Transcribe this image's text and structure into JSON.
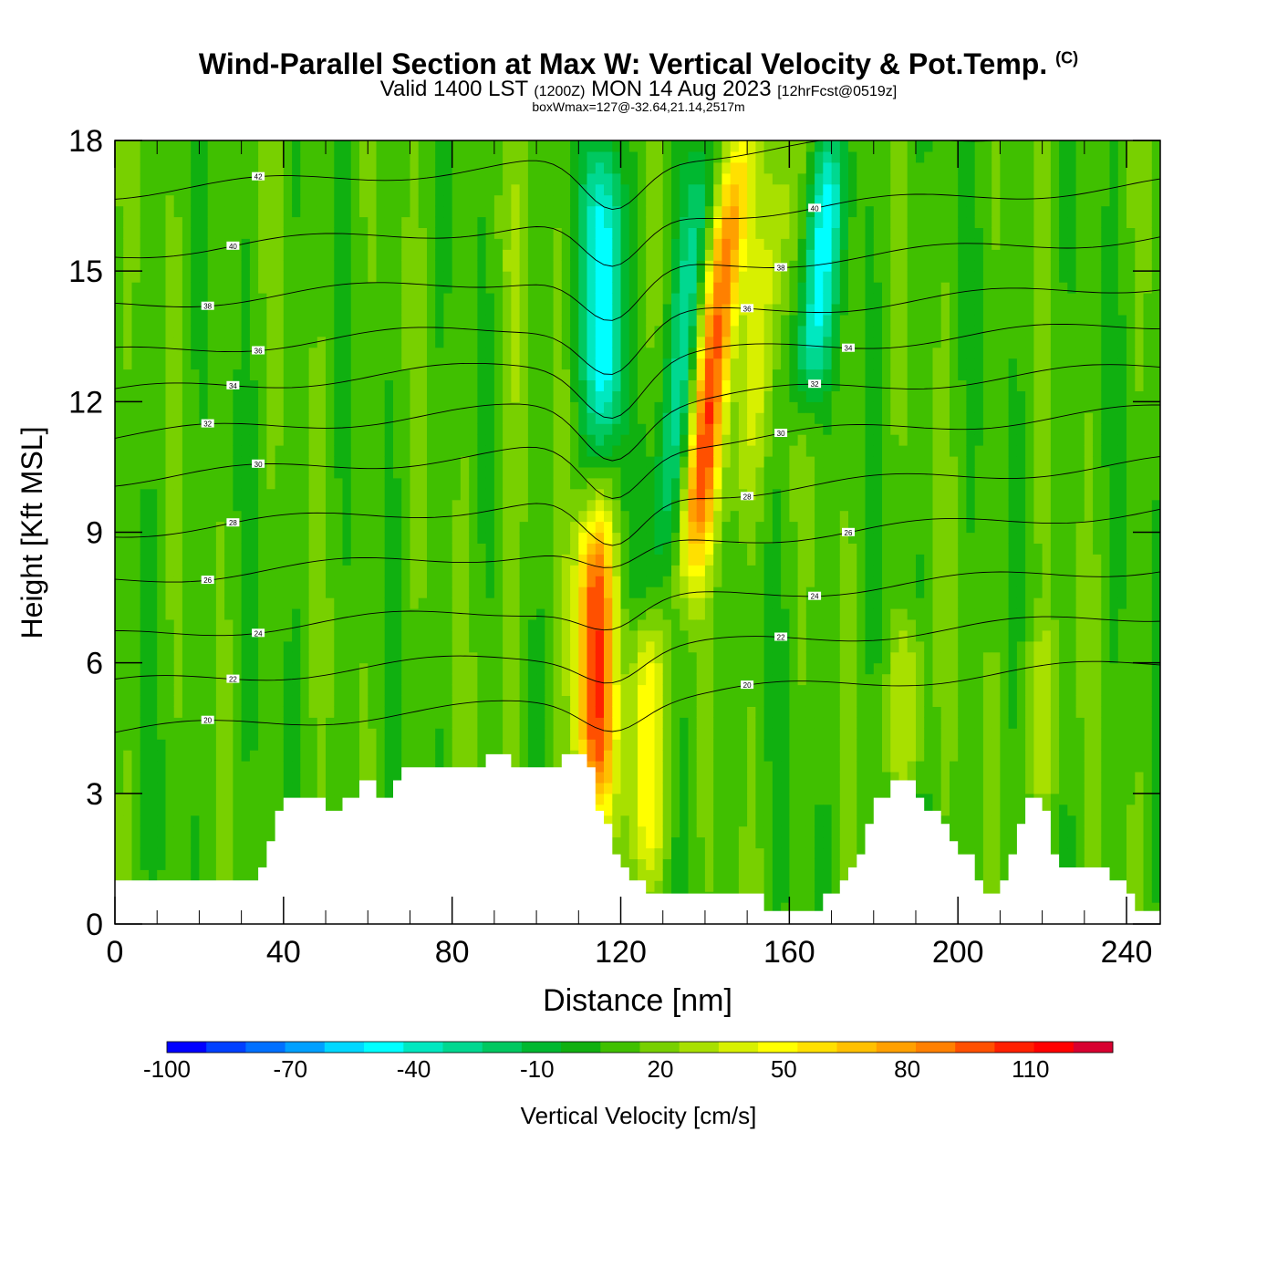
{
  "chart_data": {
    "type": "heatmap",
    "title": "Wind-Parallel Section at Max W: Vertical Velocity & Pot.Temp.",
    "copyright_mark": "(C)",
    "subtitle": {
      "valid": "Valid 1400 LST",
      "zulu": "(1200Z)",
      "date": "MON 14 Aug 2023",
      "forecast": "[12hrFcst@0519z]"
    },
    "note": "boxWmax=127@-32.64,21.14,2517m",
    "xlabel": "Distance [nm]",
    "ylabel": "Height [Kft MSL]",
    "xlim": [
      0,
      248
    ],
    "ylim": [
      0,
      18
    ],
    "x_ticks": [
      "0",
      "40",
      "80",
      "120",
      "160",
      "200",
      "240"
    ],
    "y_ticks": [
      "0",
      "3",
      "6",
      "9",
      "12",
      "15",
      "18"
    ],
    "colorbar": {
      "label": "Vertical Velocity [cm/s]",
      "tick_labels": [
        "-100",
        "-70",
        "-40",
        "-10",
        "20",
        "50",
        "80",
        "110"
      ],
      "tick_values": [
        -100,
        -70,
        -40,
        -10,
        20,
        50,
        80,
        110
      ],
      "min": -100,
      "max": 130,
      "step": 10,
      "colors": [
        "#0000ff",
        "#0040ff",
        "#0070ff",
        "#00a0ff",
        "#00d8ff",
        "#00ffff",
        "#00e8c0",
        "#00d890",
        "#00c860",
        "#00b830",
        "#10b010",
        "#40c000",
        "#78d000",
        "#a8e000",
        "#d8f000",
        "#ffff00",
        "#ffe000",
        "#ffc000",
        "#ffa000",
        "#ff8000",
        "#ff5000",
        "#ff2000",
        "#ff0000",
        "#d80030"
      ]
    },
    "vertical_velocity_series": [
      {
        "name": "updraft",
        "x_center": 114,
        "z_range": [
          2.5,
          9.5
        ],
        "value": 110
      },
      {
        "name": "updraft",
        "x_center": 126,
        "z_range": [
          1.0,
          7.0
        ],
        "value": 60
      },
      {
        "name": "updraft",
        "x_center": 141,
        "z_range": [
          8.0,
          18.0
        ],
        "value": 110
      },
      {
        "name": "updraft",
        "x_center": 152,
        "z_range": [
          9.0,
          18.0
        ],
        "value": 40
      },
      {
        "name": "downdraft",
        "x_center": 116,
        "z_range": [
          11.0,
          18.0
        ],
        "value": -50
      },
      {
        "name": "downdraft",
        "x_center": 134,
        "z_range": [
          8.0,
          18.0
        ],
        "value": -30
      },
      {
        "name": "downdraft",
        "x_center": 164,
        "z_range": [
          12.0,
          18.0
        ],
        "value": -40
      },
      {
        "name": "updraft",
        "x_center": 94,
        "z_range": [
          4.0,
          18.0
        ],
        "value": 25
      },
      {
        "name": "updraft",
        "x_center": 188,
        "z_range": [
          3.0,
          7.0
        ],
        "value": 40
      },
      {
        "name": "updraft",
        "x_center": 220,
        "z_range": [
          2.5,
          7.0
        ],
        "value": 35
      }
    ],
    "terrain": [
      [
        0,
        1.0
      ],
      [
        34,
        1.0
      ],
      [
        34,
        1.3
      ],
      [
        36,
        1.3
      ],
      [
        36,
        1.9
      ],
      [
        38,
        1.9
      ],
      [
        38,
        2.6
      ],
      [
        40,
        2.6
      ],
      [
        40,
        2.9
      ],
      [
        50,
        2.9
      ],
      [
        50,
        2.6
      ],
      [
        52,
        2.6
      ],
      [
        52,
        2.6
      ],
      [
        54,
        2.6
      ],
      [
        54,
        2.9
      ],
      [
        58,
        2.9
      ],
      [
        58,
        3.3
      ],
      [
        62,
        3.3
      ],
      [
        62,
        2.9
      ],
      [
        66,
        2.9
      ],
      [
        66,
        3.3
      ],
      [
        68,
        3.3
      ],
      [
        68,
        3.6
      ],
      [
        88,
        3.6
      ],
      [
        88,
        3.9
      ],
      [
        94,
        3.9
      ],
      [
        94,
        3.6
      ],
      [
        106,
        3.6
      ],
      [
        106,
        3.9
      ],
      [
        112,
        3.9
      ],
      [
        112,
        3.6
      ],
      [
        114,
        3.6
      ],
      [
        114,
        2.6
      ],
      [
        116,
        2.6
      ],
      [
        116,
        2.3
      ],
      [
        118,
        2.3
      ],
      [
        118,
        1.6
      ],
      [
        120,
        1.6
      ],
      [
        120,
        1.3
      ],
      [
        122,
        1.3
      ],
      [
        122,
        1.0
      ],
      [
        126,
        1.0
      ],
      [
        126,
        0.7
      ],
      [
        154,
        0.7
      ],
      [
        154,
        0.3
      ],
      [
        160,
        0.3
      ],
      [
        160,
        0.3
      ],
      [
        168,
        0.3
      ],
      [
        168,
        0.7
      ],
      [
        172,
        0.7
      ],
      [
        172,
        1.0
      ],
      [
        174,
        1.0
      ],
      [
        174,
        1.3
      ],
      [
        176,
        1.3
      ],
      [
        176,
        1.6
      ],
      [
        178,
        1.6
      ],
      [
        178,
        2.3
      ],
      [
        180,
        2.3
      ],
      [
        180,
        2.9
      ],
      [
        184,
        2.9
      ],
      [
        184,
        3.3
      ],
      [
        190,
        3.3
      ],
      [
        190,
        2.9
      ],
      [
        192,
        2.9
      ],
      [
        192,
        2.6
      ],
      [
        196,
        2.6
      ],
      [
        196,
        2.3
      ],
      [
        198,
        2.3
      ],
      [
        198,
        1.9
      ],
      [
        200,
        1.9
      ],
      [
        200,
        1.6
      ],
      [
        204,
        1.6
      ],
      [
        204,
        1.0
      ],
      [
        206,
        1.0
      ],
      [
        206,
        0.7
      ],
      [
        210,
        0.7
      ],
      [
        210,
        1.0
      ],
      [
        212,
        1.0
      ],
      [
        212,
        1.6
      ],
      [
        214,
        1.6
      ],
      [
        214,
        2.3
      ],
      [
        216,
        2.3
      ],
      [
        216,
        2.9
      ],
      [
        220,
        2.9
      ],
      [
        220,
        2.6
      ],
      [
        222,
        2.6
      ],
      [
        222,
        1.6
      ],
      [
        224,
        1.6
      ],
      [
        224,
        1.3
      ],
      [
        236,
        1.3
      ],
      [
        236,
        1.0
      ],
      [
        240,
        1.0
      ],
      [
        240,
        0.7
      ],
      [
        242,
        0.7
      ],
      [
        242,
        0.3
      ],
      [
        248,
        0.3
      ]
    ],
    "theta_contours": [
      {
        "level": 20,
        "label": "20",
        "base_z": 4.4
      },
      {
        "level": 22,
        "label": "22",
        "base_z": 5.5
      },
      {
        "level": 24,
        "label": "24",
        "base_z": 6.6
      },
      {
        "level": 26,
        "label": "26",
        "base_z": 7.9
      },
      {
        "level": 28,
        "label": "28",
        "base_z": 9.0
      },
      {
        "level": 30,
        "label": "30",
        "base_z": 10.2
      },
      {
        "level": 32,
        "label": "32",
        "base_z": 11.2
      },
      {
        "level": 34,
        "label": "34",
        "base_z": 12.2
      },
      {
        "level": 36,
        "label": "36",
        "base_z": 13.1
      },
      {
        "level": 38,
        "label": "38",
        "base_z": 14.2
      },
      {
        "level": 40,
        "label": "40",
        "base_z": 15.4
      },
      {
        "level": 42,
        "label": "42",
        "base_z": 16.8
      }
    ],
    "grid": false,
    "legend": "bottom"
  }
}
